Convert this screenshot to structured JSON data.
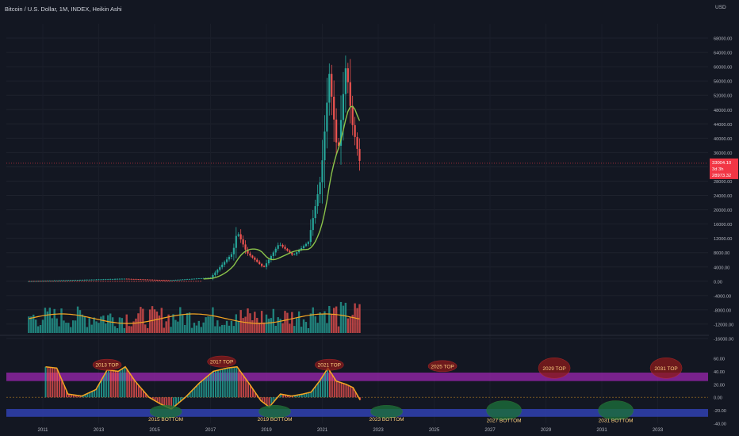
{
  "title": "Bitcoin / U.S. Dollar, 1M, INDEX, Heikin Ashi",
  "currency": "USD",
  "colors": {
    "background": "#131722",
    "up": "#26a69a",
    "down": "#ef5350",
    "ma": "#8bc34a",
    "ma_down": "#ef5350",
    "volume_ma": "#f5a623",
    "purple_band": "#9c27b0",
    "blue_band": "#2f3ea8",
    "osc_line": "#f5a623",
    "price_label": "#f23645"
  },
  "chart_data": [
    {
      "type": "candlestick",
      "name": "price",
      "ylim": [
        -18000,
        72000
      ],
      "y_ticks": [
        "68000.00",
        "64000.00",
        "60000.00",
        "56000.00",
        "52000.00",
        "48000.00",
        "44000.00",
        "40000.00",
        "36000.00",
        "32000.00",
        "28000.00",
        "24000.00",
        "20000.00",
        "16000.00",
        "12000.00",
        "8000.00",
        "4000.00",
        "0.00",
        "-4000.00",
        "-8000.00",
        "-12000.00",
        "-16000.00"
      ],
      "y_tick_values": [
        68000,
        64000,
        60000,
        56000,
        52000,
        48000,
        44000,
        40000,
        36000,
        32000,
        28000,
        24000,
        20000,
        16000,
        12000,
        8000,
        4000,
        0,
        -4000,
        -8000,
        -12000,
        -16000
      ],
      "x_ticks": [
        "2011",
        "2013",
        "2015",
        "2017",
        "2019",
        "2021",
        "2023",
        "2025",
        "2027",
        "2029",
        "2031",
        "2033"
      ],
      "x_tick_years": [
        2011,
        2013,
        2015,
        2017,
        2019,
        2021,
        2023,
        2025,
        2027,
        2029,
        2031,
        2033
      ],
      "last_price_label": "33004.10",
      "countdown_label": "3d 3h",
      "secondary_price_label": "28973.32",
      "last_price": 33004,
      "key_points": [
        {
          "t": 2010.5,
          "close": 0
        },
        {
          "t": 2013.9,
          "close": 700
        },
        {
          "t": 2015.5,
          "close": 250
        },
        {
          "t": 2017.0,
          "close": 1000
        },
        {
          "t": 2017.8,
          "close": 8000
        },
        {
          "t": 2017.95,
          "close": 14000
        },
        {
          "t": 2018.3,
          "close": 8000
        },
        {
          "t": 2018.9,
          "close": 3800
        },
        {
          "t": 2019.45,
          "close": 10500
        },
        {
          "t": 2019.95,
          "close": 7200
        },
        {
          "t": 2020.5,
          "close": 11000
        },
        {
          "t": 2020.95,
          "close": 29000
        },
        {
          "t": 2021.25,
          "close": 58000
        },
        {
          "t": 2021.55,
          "close": 35000
        },
        {
          "t": 2021.85,
          "close": 61000
        },
        {
          "t": 2022.05,
          "close": 45000
        },
        {
          "t": 2022.35,
          "close": 33004
        }
      ]
    },
    {
      "type": "oscillator",
      "name": "cycle-oscillator",
      "ylim": [
        -40,
        60
      ],
      "y_ticks": [
        "60.00",
        "40.00",
        "20.00",
        "0.00",
        "-20.00",
        "-40.00"
      ],
      "y_tick_values": [
        60,
        40,
        20,
        0,
        -20,
        -40
      ],
      "overbought_band": [
        25,
        38
      ],
      "oversold_band": [
        -18,
        -30
      ],
      "annotations_top": [
        {
          "label": "2013 TOP",
          "t": 2013.3,
          "y": 50
        },
        {
          "label": "2017 TOP",
          "t": 2017.4,
          "y": 55
        },
        {
          "label": "2021 TOP",
          "t": 2021.25,
          "y": 50
        },
        {
          "label": "2025 TOP",
          "t": 2025.3,
          "y": 48
        },
        {
          "label": "2029 TOP",
          "t": 2029.3,
          "y": 45
        },
        {
          "label": "2031 TOP",
          "t": 2033.3,
          "y": 45
        }
      ],
      "annotations_bottom": [
        {
          "label": "2015 BOTTOM",
          "t": 2015.4,
          "y": -22
        },
        {
          "label": "2019 BOTTOM",
          "t": 2019.3,
          "y": -22
        },
        {
          "label": "2023 BOTTOM",
          "t": 2023.3,
          "y": -22
        },
        {
          "label": "2027 BOTTOM",
          "t": 2027.5,
          "y": -20
        },
        {
          "label": "2031 BOTTOM",
          "t": 2031.5,
          "y": -20
        }
      ],
      "line_points": [
        {
          "t": 2011.1,
          "v": 47
        },
        {
          "t": 2011.5,
          "v": 45
        },
        {
          "t": 2011.9,
          "v": 5
        },
        {
          "t": 2012.4,
          "v": 2
        },
        {
          "t": 2012.9,
          "v": 12
        },
        {
          "t": 2013.3,
          "v": 42
        },
        {
          "t": 2013.7,
          "v": 40
        },
        {
          "t": 2013.95,
          "v": 47
        },
        {
          "t": 2014.3,
          "v": 25
        },
        {
          "t": 2014.8,
          "v": 0
        },
        {
          "t": 2015.2,
          "v": -10
        },
        {
          "t": 2015.6,
          "v": -18
        },
        {
          "t": 2016.1,
          "v": 0
        },
        {
          "t": 2016.6,
          "v": 22
        },
        {
          "t": 2017.1,
          "v": 40
        },
        {
          "t": 2017.6,
          "v": 45
        },
        {
          "t": 2017.95,
          "v": 47
        },
        {
          "t": 2018.4,
          "v": 20
        },
        {
          "t": 2018.8,
          "v": -5
        },
        {
          "t": 2019.1,
          "v": -15
        },
        {
          "t": 2019.5,
          "v": 5
        },
        {
          "t": 2019.9,
          "v": 2
        },
        {
          "t": 2020.3,
          "v": 5
        },
        {
          "t": 2020.6,
          "v": 8
        },
        {
          "t": 2020.9,
          "v": 25
        },
        {
          "t": 2021.2,
          "v": 45
        },
        {
          "t": 2021.5,
          "v": 25
        },
        {
          "t": 2021.85,
          "v": 20
        },
        {
          "t": 2022.1,
          "v": 15
        },
        {
          "t": 2022.35,
          "v": -4
        }
      ]
    }
  ]
}
